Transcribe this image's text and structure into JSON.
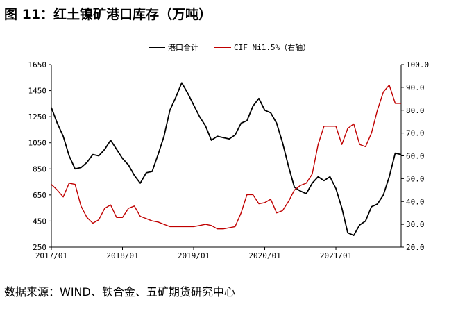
{
  "figure": {
    "title": "图 11：红土镍矿港口库存（万吨）",
    "source": "数据来源：WIND、铁合金、五矿期货研究中心"
  },
  "chart_data": {
    "type": "line",
    "x_axis": {
      "start": "2017/01",
      "end": "2021/12",
      "ticks": [
        "2017/01",
        "2018/01",
        "2019/01",
        "2020/01",
        "2021/01"
      ]
    },
    "y_left": {
      "min": 250,
      "max": 1650,
      "ticks": [
        250,
        450,
        650,
        850,
        1050,
        1250,
        1450,
        1650
      ]
    },
    "y_right": {
      "min": 20.0,
      "max": 100.0,
      "ticks": [
        "20.0",
        "30.0",
        "40.0",
        "50.0",
        "60.0",
        "70.0",
        "80.0",
        "90.0",
        "100.0"
      ]
    },
    "grid": false,
    "legend": "top-center",
    "series": [
      {
        "name": "港口合计",
        "axis": "left",
        "color": "#000000",
        "points": [
          [
            "2017/01",
            1320
          ],
          [
            "2017/02",
            1200
          ],
          [
            "2017/03",
            1100
          ],
          [
            "2017/04",
            950
          ],
          [
            "2017/05",
            850
          ],
          [
            "2017/06",
            860
          ],
          [
            "2017/07",
            900
          ],
          [
            "2017/08",
            960
          ],
          [
            "2017/09",
            950
          ],
          [
            "2017/10",
            1000
          ],
          [
            "2017/11",
            1070
          ],
          [
            "2017/12",
            1000
          ],
          [
            "2018/01",
            930
          ],
          [
            "2018/02",
            880
          ],
          [
            "2018/03",
            800
          ],
          [
            "2018/04",
            740
          ],
          [
            "2018/05",
            820
          ],
          [
            "2018/06",
            830
          ],
          [
            "2018/07",
            960
          ],
          [
            "2018/08",
            1100
          ],
          [
            "2018/09",
            1300
          ],
          [
            "2018/10",
            1400
          ],
          [
            "2018/11",
            1510
          ],
          [
            "2018/12",
            1430
          ],
          [
            "2019/01",
            1340
          ],
          [
            "2019/02",
            1250
          ],
          [
            "2019/03",
            1180
          ],
          [
            "2019/04",
            1070
          ],
          [
            "2019/05",
            1100
          ],
          [
            "2019/06",
            1090
          ],
          [
            "2019/07",
            1080
          ],
          [
            "2019/08",
            1110
          ],
          [
            "2019/09",
            1200
          ],
          [
            "2019/10",
            1220
          ],
          [
            "2019/11",
            1330
          ],
          [
            "2019/12",
            1390
          ],
          [
            "2020/01",
            1300
          ],
          [
            "2020/02",
            1280
          ],
          [
            "2020/03",
            1200
          ],
          [
            "2020/04",
            1050
          ],
          [
            "2020/05",
            870
          ],
          [
            "2020/06",
            710
          ],
          [
            "2020/07",
            680
          ],
          [
            "2020/08",
            660
          ],
          [
            "2020/09",
            740
          ],
          [
            "2020/10",
            790
          ],
          [
            "2020/11",
            760
          ],
          [
            "2020/12",
            790
          ],
          [
            "2021/01",
            700
          ],
          [
            "2021/02",
            550
          ],
          [
            "2021/03",
            360
          ],
          [
            "2021/04",
            340
          ],
          [
            "2021/05",
            420
          ],
          [
            "2021/06",
            450
          ],
          [
            "2021/07",
            560
          ],
          [
            "2021/08",
            580
          ],
          [
            "2021/09",
            650
          ],
          [
            "2021/10",
            790
          ],
          [
            "2021/11",
            970
          ],
          [
            "2021/12",
            960
          ]
        ]
      },
      {
        "name": "CIF Ni1.5%（右轴）",
        "axis": "right",
        "color": "#c00000",
        "points": [
          [
            "2017/01",
            47.5
          ],
          [
            "2017/02",
            45.0
          ],
          [
            "2017/03",
            42.0
          ],
          [
            "2017/04",
            48.0
          ],
          [
            "2017/05",
            47.5
          ],
          [
            "2017/06",
            38.0
          ],
          [
            "2017/07",
            33.0
          ],
          [
            "2017/08",
            30.5
          ],
          [
            "2017/09",
            32.0
          ],
          [
            "2017/10",
            37.0
          ],
          [
            "2017/11",
            38.5
          ],
          [
            "2017/12",
            33.0
          ],
          [
            "2018/01",
            33.0
          ],
          [
            "2018/02",
            37.0
          ],
          [
            "2018/03",
            38.0
          ],
          [
            "2018/04",
            33.5
          ],
          [
            "2018/05",
            32.5
          ],
          [
            "2018/06",
            31.5
          ],
          [
            "2018/07",
            31.0
          ],
          [
            "2018/08",
            30.0
          ],
          [
            "2018/09",
            29.0
          ],
          [
            "2018/10",
            29.0
          ],
          [
            "2018/11",
            29.0
          ],
          [
            "2018/12",
            29.0
          ],
          [
            "2019/01",
            29.0
          ],
          [
            "2019/02",
            29.5
          ],
          [
            "2019/03",
            30.0
          ],
          [
            "2019/04",
            29.5
          ],
          [
            "2019/05",
            28.0
          ],
          [
            "2019/06",
            28.0
          ],
          [
            "2019/07",
            28.5
          ],
          [
            "2019/08",
            29.0
          ],
          [
            "2019/09",
            35.0
          ],
          [
            "2019/10",
            43.0
          ],
          [
            "2019/11",
            43.0
          ],
          [
            "2019/12",
            39.0
          ],
          [
            "2020/01",
            39.5
          ],
          [
            "2020/02",
            41.0
          ],
          [
            "2020/03",
            35.0
          ],
          [
            "2020/04",
            36.0
          ],
          [
            "2020/05",
            40.0
          ],
          [
            "2020/06",
            45.0
          ],
          [
            "2020/07",
            47.0
          ],
          [
            "2020/08",
            48.0
          ],
          [
            "2020/09",
            52.0
          ],
          [
            "2020/10",
            65.0
          ],
          [
            "2020/11",
            73.0
          ],
          [
            "2020/12",
            73.0
          ],
          [
            "2021/01",
            73.0
          ],
          [
            "2021/02",
            65.0
          ],
          [
            "2021/03",
            72.0
          ],
          [
            "2021/04",
            74.0
          ],
          [
            "2021/05",
            65.0
          ],
          [
            "2021/06",
            64.0
          ],
          [
            "2021/07",
            70.0
          ],
          [
            "2021/08",
            80.0
          ],
          [
            "2021/09",
            88.0
          ],
          [
            "2021/10",
            91.0
          ],
          [
            "2021/11",
            83.0
          ],
          [
            "2021/12",
            83.0
          ]
        ]
      }
    ]
  }
}
